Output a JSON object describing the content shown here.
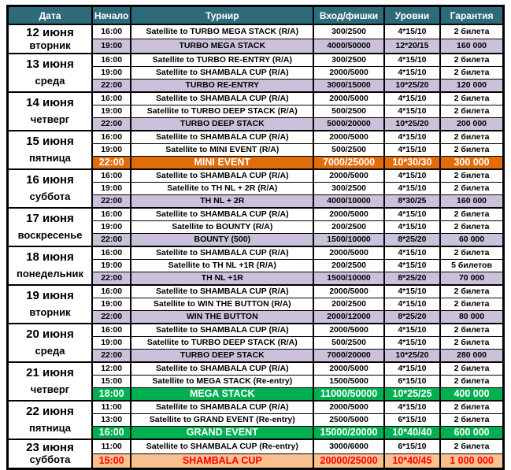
{
  "colors": {
    "header_bg": "#2E6B7A",
    "header_text": "#FFFFFF",
    "body_text": "#000000",
    "border": "#000000",
    "lavender_row_bg": "#CCC1DA",
    "orange_row_bg": "#E36C0A",
    "green_row_bg": "#00B050",
    "peach_row_bg": "#FAC090",
    "peach_row_text": "#FF0000",
    "highlight_text": "#FFFFFF"
  },
  "table": {
    "columns": [
      "Дата",
      "Начало",
      "Турнир",
      "Вход/фишки",
      "Уровни",
      "Гарантия"
    ],
    "days": [
      {
        "date": "12 июня",
        "weekday": "вторник",
        "rows": [
          {
            "time": "16:00",
            "tournament": "Satellite to TURBO MEGA STACK (R/A)",
            "entry": "300/2500",
            "levels": "4*15/10",
            "guarantee": "2 билета",
            "style": "normal"
          },
          {
            "time": "19:00",
            "tournament": "TURBO MEGA STACK",
            "entry": "4000/50000",
            "levels": "12*20/15",
            "guarantee": "160 000",
            "style": "lavender"
          }
        ]
      },
      {
        "date": "13 июня",
        "weekday": "среда",
        "rows": [
          {
            "time": "16:00",
            "tournament": "Satellite to TURBO RE-ENTRY (R/A)",
            "entry": "300/2500",
            "levels": "4*15/10",
            "guarantee": "2 билета",
            "style": "normal"
          },
          {
            "time": "19:00",
            "tournament": "Satellite to SHAMBALA CUP (R/A)",
            "entry": "2000/5000",
            "levels": "4*15/10",
            "guarantee": "2 билета",
            "style": "normal"
          },
          {
            "time": "22:00",
            "tournament": "TURBO RE-ENTRY",
            "entry": "3000/15000",
            "levels": "10*25/20",
            "guarantee": "120 000",
            "style": "lavender"
          }
        ]
      },
      {
        "date": "14 июня",
        "weekday": "четверг",
        "rows": [
          {
            "time": "16:00",
            "tournament": "Satellite to SHAMBALA CUP (R/A)",
            "entry": "2000/5000",
            "levels": "4*15/10",
            "guarantee": "2 билета",
            "style": "normal"
          },
          {
            "time": "19:00",
            "tournament": "Satellite to TURBO DEEP STACK (R/A)",
            "entry": "500/2500",
            "levels": "4*15/10",
            "guarantee": "2 билета",
            "style": "normal"
          },
          {
            "time": "22:00",
            "tournament": "TURBO DEEP STACK",
            "entry": "5000/20000",
            "levels": "10*25/20",
            "guarantee": "200 000",
            "style": "lavender"
          }
        ]
      },
      {
        "date": "15 июня",
        "weekday": "пятница",
        "rows": [
          {
            "time": "16:00",
            "tournament": "Satellite to SHAMBALA CUP (R/A)",
            "entry": "2000/5000",
            "levels": "4*15/10",
            "guarantee": "2 билета",
            "style": "normal"
          },
          {
            "time": "19:00",
            "tournament": "Satellite to MINI EVENT (R/A)",
            "entry": "500/2500",
            "levels": "4*15/10",
            "guarantee": "2 билета",
            "style": "normal"
          },
          {
            "time": "22:00",
            "tournament": "MINI EVENT",
            "entry": "7000/25000",
            "levels": "10*30/30",
            "guarantee": "300 000",
            "style": "orange"
          }
        ]
      },
      {
        "date": "16 июня",
        "weekday": "суббота",
        "rows": [
          {
            "time": "16:00",
            "tournament": "Satellite to SHAMBALA CUP (R/A)",
            "entry": "2000/5000",
            "levels": "4*15/10",
            "guarantee": "2 билета",
            "style": "normal"
          },
          {
            "time": "19:00",
            "tournament": "Satellite to TH NL + 2R (R/A)",
            "entry": "300/2500",
            "levels": "4*15/10",
            "guarantee": "2 билета",
            "style": "normal"
          },
          {
            "time": "22:00",
            "tournament": "TH NL + 2R",
            "entry": "4000/10000",
            "levels": "8*30/25",
            "guarantee": "160 000",
            "style": "lavender"
          }
        ]
      },
      {
        "date": "17 июня",
        "weekday": "воскресенье",
        "rows": [
          {
            "time": "16:00",
            "tournament": "Satellite to SHAMBALA CUP (R/A)",
            "entry": "2000/5000",
            "levels": "4*15/10",
            "guarantee": "2 билета",
            "style": "normal"
          },
          {
            "time": "19:00",
            "tournament": "Satellite to BOUNTY (R/A)",
            "entry": "200/2500",
            "levels": "4*15/10",
            "guarantee": "2 билета",
            "style": "normal"
          },
          {
            "time": "22:00",
            "tournament": "BOUNTY (500)",
            "entry": "1500/10000",
            "levels": "8*25/20",
            "guarantee": "60 000",
            "style": "lavender"
          }
        ]
      },
      {
        "date": "18 июня",
        "weekday": "понедельник",
        "rows": [
          {
            "time": "16:00",
            "tournament": "Satellite to SHAMBALA CUP (R/A)",
            "entry": "2000/5000",
            "levels": "4*15/10",
            "guarantee": "2 билета",
            "style": "normal"
          },
          {
            "time": "19:00",
            "tournament": "Satellite to TH NL +1R (R/A)",
            "entry": "200/2500",
            "levels": "4*15/10",
            "guarantee": "5 билетов",
            "style": "normal"
          },
          {
            "time": "22:00",
            "tournament": "TH NL +1R",
            "entry": "1500/10000",
            "levels": "8*25/20",
            "guarantee": "70 000",
            "style": "lavender"
          }
        ]
      },
      {
        "date": "19 июня",
        "weekday": "вторник",
        "rows": [
          {
            "time": "16:00",
            "tournament": "Satellite to SHAMBALA CUP (R/A)",
            "entry": "2000/5000",
            "levels": "4*15/10",
            "guarantee": "2 билета",
            "style": "normal"
          },
          {
            "time": "19:00",
            "tournament": "Satellite to WIN THE BUTTON (R/A)",
            "entry": "200/2500",
            "levels": "4*15/10",
            "guarantee": "2 билета",
            "style": "normal"
          },
          {
            "time": "22:00",
            "tournament": "WIN THE BUTTON",
            "entry": "2000/12000",
            "levels": "8*25/20",
            "guarantee": "80 000",
            "style": "lavender"
          }
        ]
      },
      {
        "date": "20 июня",
        "weekday": "среда",
        "rows": [
          {
            "time": "16:00",
            "tournament": "Satellite to SHAMBALA CUP (R/A)",
            "entry": "2000/5000",
            "levels": "4*15/10",
            "guarantee": "2 билета",
            "style": "normal"
          },
          {
            "time": "19:00",
            "tournament": "Satellite to TURBO DEEP STACK (R/A)",
            "entry": "500/2500",
            "levels": "4*15/10",
            "guarantee": "2 билета",
            "style": "normal"
          },
          {
            "time": "22:00",
            "tournament": "TURBO DEEP STACK",
            "entry": "7000/20000",
            "levels": "10*25/20",
            "guarantee": "280 000",
            "style": "lavender"
          }
        ]
      },
      {
        "date": "21 июня",
        "weekday": "четверг",
        "rows": [
          {
            "time": "12:00",
            "tournament": "Satellite to SHAMBALA CUP (R/A)",
            "entry": "2000/5000",
            "levels": "4*15/10",
            "guarantee": "2 билета",
            "style": "normal"
          },
          {
            "time": "15:00",
            "tournament": "Satellite to MEGA STACK (Re-entry)",
            "entry": "1500/5000",
            "levels": "6*15/10",
            "guarantee": "2 билета",
            "style": "normal"
          },
          {
            "time": "18:00",
            "tournament": "MEGA STACK",
            "entry": "11000/50000",
            "levels": "10*25/25",
            "guarantee": "400 000",
            "style": "green"
          }
        ]
      },
      {
        "date": "22 июня",
        "weekday": "пятница",
        "rows": [
          {
            "time": "11:00",
            "tournament": "Satellite to SHAMBALA CUP (R/A)",
            "entry": "2000/5000",
            "levels": "4*15/10",
            "guarantee": "2 билета",
            "style": "normal"
          },
          {
            "time": "13:00",
            "tournament": "Satellite to GRAND EVENT (Re-entry)",
            "entry": "2500/5000",
            "levels": "6*15/10",
            "guarantee": "2 билета",
            "style": "normal"
          },
          {
            "time": "16:00",
            "tournament": "GRAND EVENT",
            "entry": "15000/20000",
            "levels": "10*40/40",
            "guarantee": "600 000",
            "style": "green"
          }
        ]
      },
      {
        "date": "23 июня",
        "weekday": "суббота",
        "rows": [
          {
            "time": "11:00",
            "tournament": "Satellite to SHAMBALA CUP (Re-entry)",
            "entry": "3000/6000",
            "levels": "6*15/10",
            "guarantee": "2 билета",
            "style": "normal"
          },
          {
            "time": "15:00",
            "tournament": "SHAMBALA CUP",
            "entry": "20000/25000",
            "levels": "10*40/45",
            "guarantee": "1 000 000",
            "style": "peach"
          }
        ]
      }
    ]
  }
}
